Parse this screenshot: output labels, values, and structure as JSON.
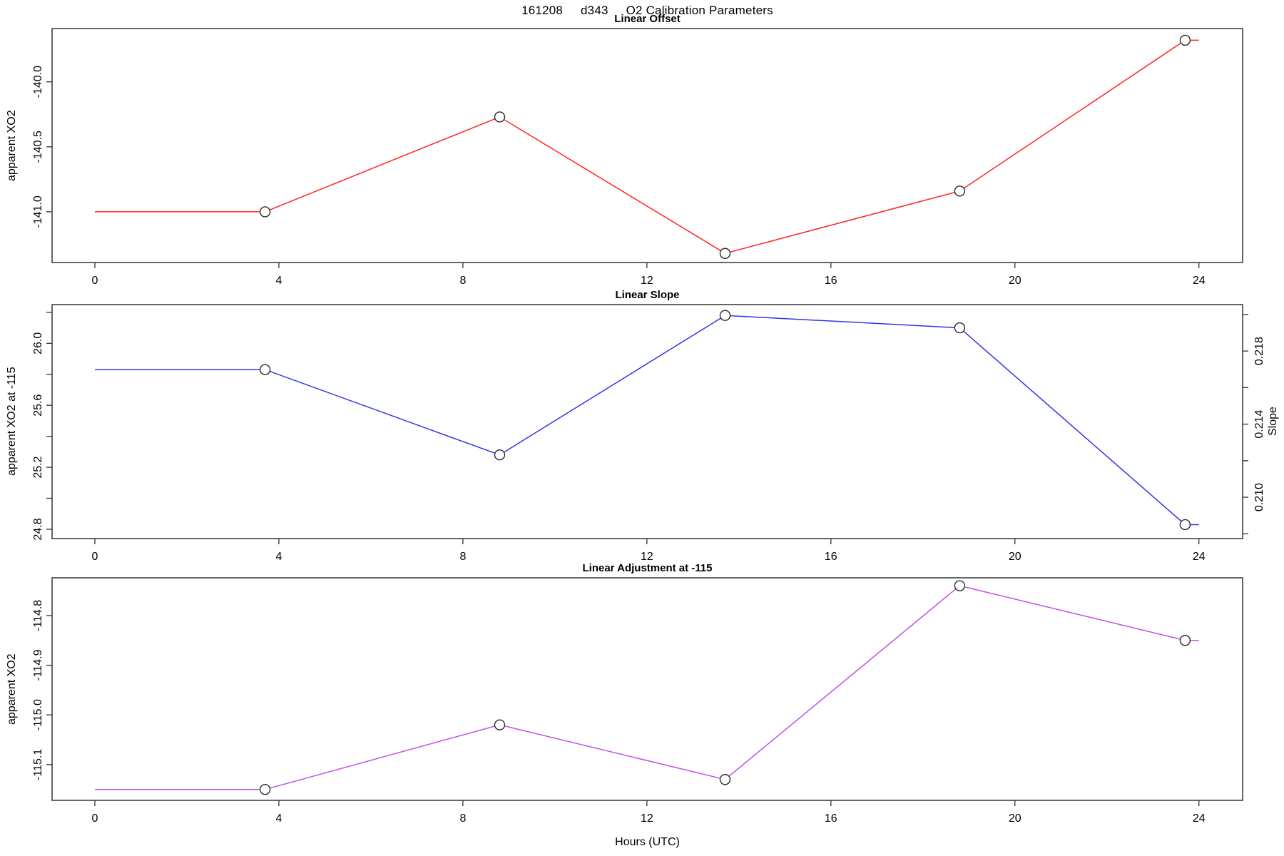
{
  "figure": {
    "title_parts": [
      "161208",
      "d343",
      "O2 Calibration Parameters"
    ],
    "xlabel": "Hours (UTC)"
  },
  "chart_data": [
    {
      "type": "line",
      "title": "Linear Offset",
      "ylabel": "apparent XO2",
      "color": "#ff2424",
      "marker_color": "#2b2b2b",
      "x": [
        0,
        3.7,
        8.8,
        13.7,
        18.8,
        23.7,
        24
      ],
      "y": [
        -141.0,
        -141.0,
        -140.27,
        -141.32,
        -140.84,
        -139.68,
        -139.68
      ],
      "markers": [
        false,
        true,
        true,
        true,
        true,
        true,
        false
      ],
      "xlim": [
        -0.93,
        24.95
      ],
      "ylim": [
        -141.39,
        -139.59
      ],
      "xticks": [
        {
          "value": 0,
          "label": "0"
        },
        {
          "value": 4,
          "label": "4"
        },
        {
          "value": 8,
          "label": "8"
        },
        {
          "value": 12,
          "label": "12"
        },
        {
          "value": 16,
          "label": "16"
        },
        {
          "value": 20,
          "label": "20"
        },
        {
          "value": 24,
          "label": "24"
        }
      ],
      "yticks": [
        {
          "value": -140.0,
          "label": "-140.0"
        },
        {
          "value": -140.5,
          "label": "-140.5"
        },
        {
          "value": -141.0,
          "label": "-141.0"
        }
      ]
    },
    {
      "type": "line",
      "title": "Linear Slope",
      "ylabel": "apparent XO2 at -115",
      "ylabel_right": "Slope",
      "color": "#3333e6",
      "marker_color": "#2b2b2b",
      "x": [
        0,
        3.7,
        8.8,
        13.7,
        18.8,
        23.7,
        24
      ],
      "y": [
        25.83,
        25.83,
        25.28,
        26.18,
        26.1,
        24.83,
        24.83
      ],
      "markers": [
        false,
        true,
        true,
        true,
        true,
        true,
        false
      ],
      "xlim": [
        -0.93,
        24.95
      ],
      "ylim": [
        24.74,
        26.25
      ],
      "ylim_right": [
        0.20774,
        0.22054
      ],
      "xticks": [
        {
          "value": 0,
          "label": "0"
        },
        {
          "value": 4,
          "label": "4"
        },
        {
          "value": 8,
          "label": "8"
        },
        {
          "value": 12,
          "label": "12"
        },
        {
          "value": 16,
          "label": "16"
        },
        {
          "value": 20,
          "label": "20"
        },
        {
          "value": 24,
          "label": "24"
        }
      ],
      "yticks": [
        {
          "value": 26.2,
          "label": ""
        },
        {
          "value": 26.0,
          "label": "26.0"
        },
        {
          "value": 25.8,
          "label": ""
        },
        {
          "value": 25.6,
          "label": "25.6"
        },
        {
          "value": 25.4,
          "label": ""
        },
        {
          "value": 25.2,
          "label": "25.2"
        },
        {
          "value": 25.0,
          "label": ""
        },
        {
          "value": 24.8,
          "label": "24.8"
        }
      ],
      "yticks_right": [
        {
          "value": 0.22,
          "label": ""
        },
        {
          "value": 0.218,
          "label": "0.218"
        },
        {
          "value": 0.216,
          "label": ""
        },
        {
          "value": 0.214,
          "label": "0.214"
        },
        {
          "value": 0.212,
          "label": ""
        },
        {
          "value": 0.21,
          "label": "0.210"
        },
        {
          "value": 0.208,
          "label": ""
        }
      ]
    },
    {
      "type": "line",
      "title": "Linear Adjustment at -115",
      "ylabel": "apparent XO2",
      "color": "#be50e6",
      "marker_color": "#2b2b2b",
      "x": [
        0,
        3.7,
        8.8,
        13.7,
        18.8,
        23.7,
        24
      ],
      "y": [
        -115.15,
        -115.15,
        -115.02,
        -115.13,
        -114.74,
        -114.85,
        -114.85
      ],
      "markers": [
        false,
        true,
        true,
        true,
        true,
        true,
        false
      ],
      "xlim": [
        -0.93,
        24.95
      ],
      "ylim": [
        -115.172,
        -114.724
      ],
      "xticks": [
        {
          "value": 0,
          "label": "0"
        },
        {
          "value": 4,
          "label": "4"
        },
        {
          "value": 8,
          "label": "8"
        },
        {
          "value": 12,
          "label": "12"
        },
        {
          "value": 16,
          "label": "16"
        },
        {
          "value": 20,
          "label": "20"
        },
        {
          "value": 24,
          "label": "24"
        }
      ],
      "yticks": [
        {
          "value": -114.8,
          "label": "-114.8"
        },
        {
          "value": -114.9,
          "label": "-114.9"
        },
        {
          "value": -115.0,
          "label": "-115.0"
        },
        {
          "value": -115.1,
          "label": "-115.1"
        }
      ]
    }
  ]
}
